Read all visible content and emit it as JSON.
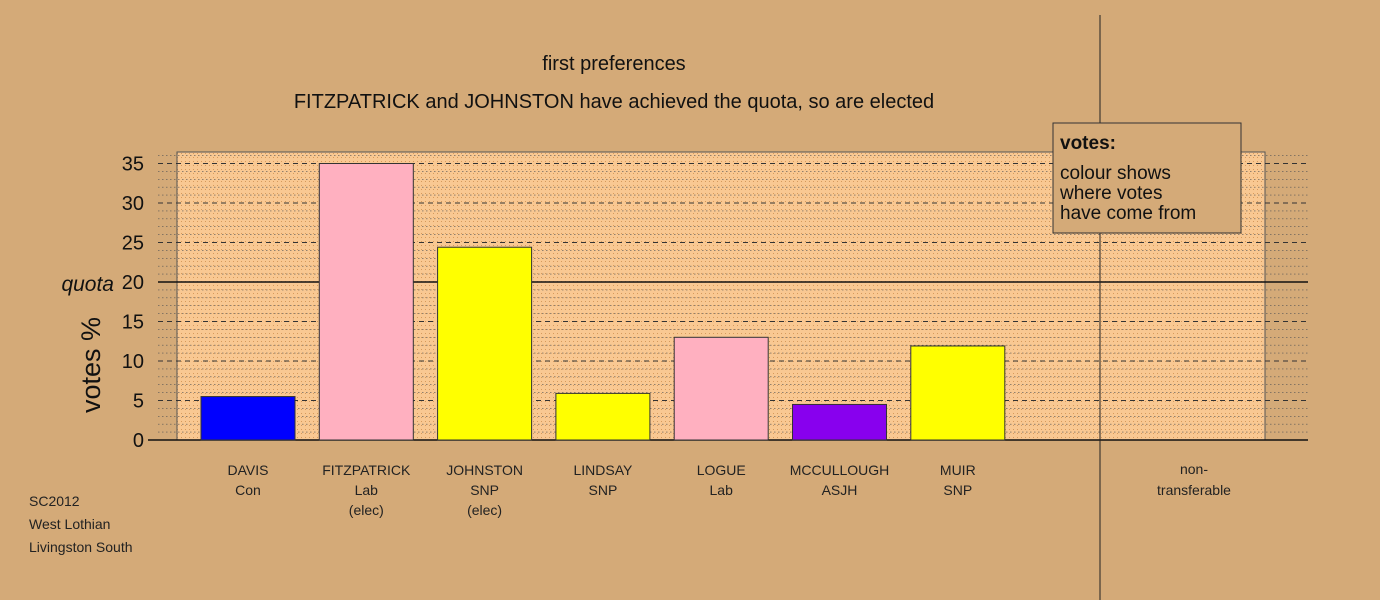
{
  "chart_data": {
    "type": "bar",
    "title": "first preferences",
    "subtitle": "FITZPATRICK and JOHNSTON have achieved the quota, so are elected",
    "ylabel": "votes %",
    "ylim": [
      0,
      36.5
    ],
    "yticks": [
      0,
      5,
      10,
      15,
      20,
      25,
      30,
      35
    ],
    "quota": 20,
    "quota_label": "quota",
    "categories": [
      {
        "name": "DAVIS",
        "party": "Con",
        "note": "",
        "value": 5.5,
        "color": "#0000ff"
      },
      {
        "name": "FITZPATRICK",
        "party": "Lab",
        "note": "(elec)",
        "value": 35.0,
        "color": "#ffb0c0"
      },
      {
        "name": "JOHNSTON",
        "party": "SNP",
        "note": "(elec)",
        "value": 24.4,
        "color": "#ffff00"
      },
      {
        "name": "LINDSAY",
        "party": "SNP",
        "note": "",
        "value": 5.9,
        "color": "#ffff00"
      },
      {
        "name": "LOGUE",
        "party": "Lab",
        "note": "",
        "value": 13.0,
        "color": "#ffb0c0"
      },
      {
        "name": "MCCULLOUGH",
        "party": "ASJH",
        "note": "",
        "value": 4.5,
        "color": "#8800ee"
      },
      {
        "name": "MUIR",
        "party": "SNP",
        "note": "",
        "value": 11.9,
        "color": "#ffff00"
      }
    ],
    "nontransferable": {
      "line1": "non-",
      "line2": "transferable",
      "value": 0
    },
    "legend": {
      "title": "votes:",
      "lines": [
        "colour shows",
        "where votes",
        "have come from"
      ]
    },
    "colors": {
      "background": "#d4aa78",
      "plot_area": "#f9c892",
      "grid": "#444444"
    }
  },
  "footer": {
    "line1": "SC2012",
    "line2": "West Lothian",
    "line3": "Livingston South"
  }
}
